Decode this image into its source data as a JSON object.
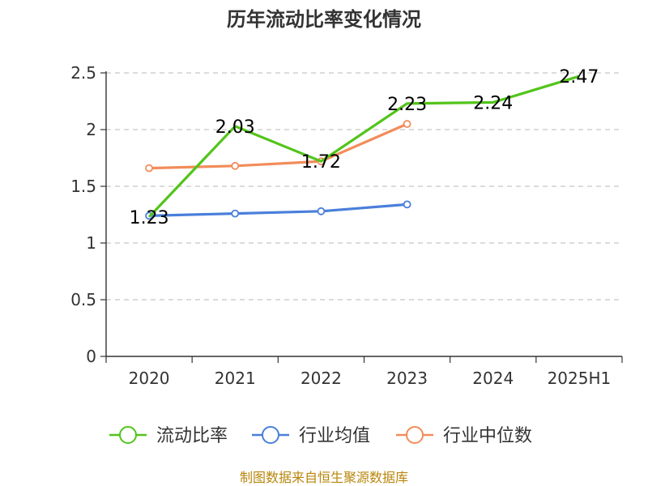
{
  "chart_data": {
    "type": "line",
    "title": "历年流动比率变化情况",
    "categories": [
      "2020",
      "2021",
      "2022",
      "2023",
      "2024",
      "2025H1"
    ],
    "ylim": [
      0,
      2.5
    ],
    "yticks": [
      "0",
      "0.5",
      "1",
      "1.5",
      "2",
      "2.5"
    ],
    "ytick_values": [
      0,
      0.5,
      1,
      1.5,
      2,
      2.5
    ],
    "grid": true,
    "legend_position": "bottom",
    "series": [
      {
        "name": "流动比率",
        "color": "#52c41a",
        "values": [
          1.23,
          2.03,
          1.72,
          2.23,
          2.24,
          2.47
        ],
        "labels": [
          "1.23",
          "2.03",
          "1.72",
          "2.23",
          "2.24",
          "2.47"
        ],
        "show_markers": false
      },
      {
        "name": "行业均值",
        "color": "#4a7fdb",
        "values": [
          1.24,
          1.26,
          1.28,
          1.34,
          null,
          null
        ],
        "show_markers": true
      },
      {
        "name": "行业中位数",
        "color": "#f28c5a",
        "values": [
          1.66,
          1.68,
          1.72,
          2.05,
          null,
          null
        ],
        "show_markers": true
      }
    ]
  },
  "footer": {
    "source": "制图数据来自恒生聚源数据库",
    "source_color": "#b8860b"
  }
}
